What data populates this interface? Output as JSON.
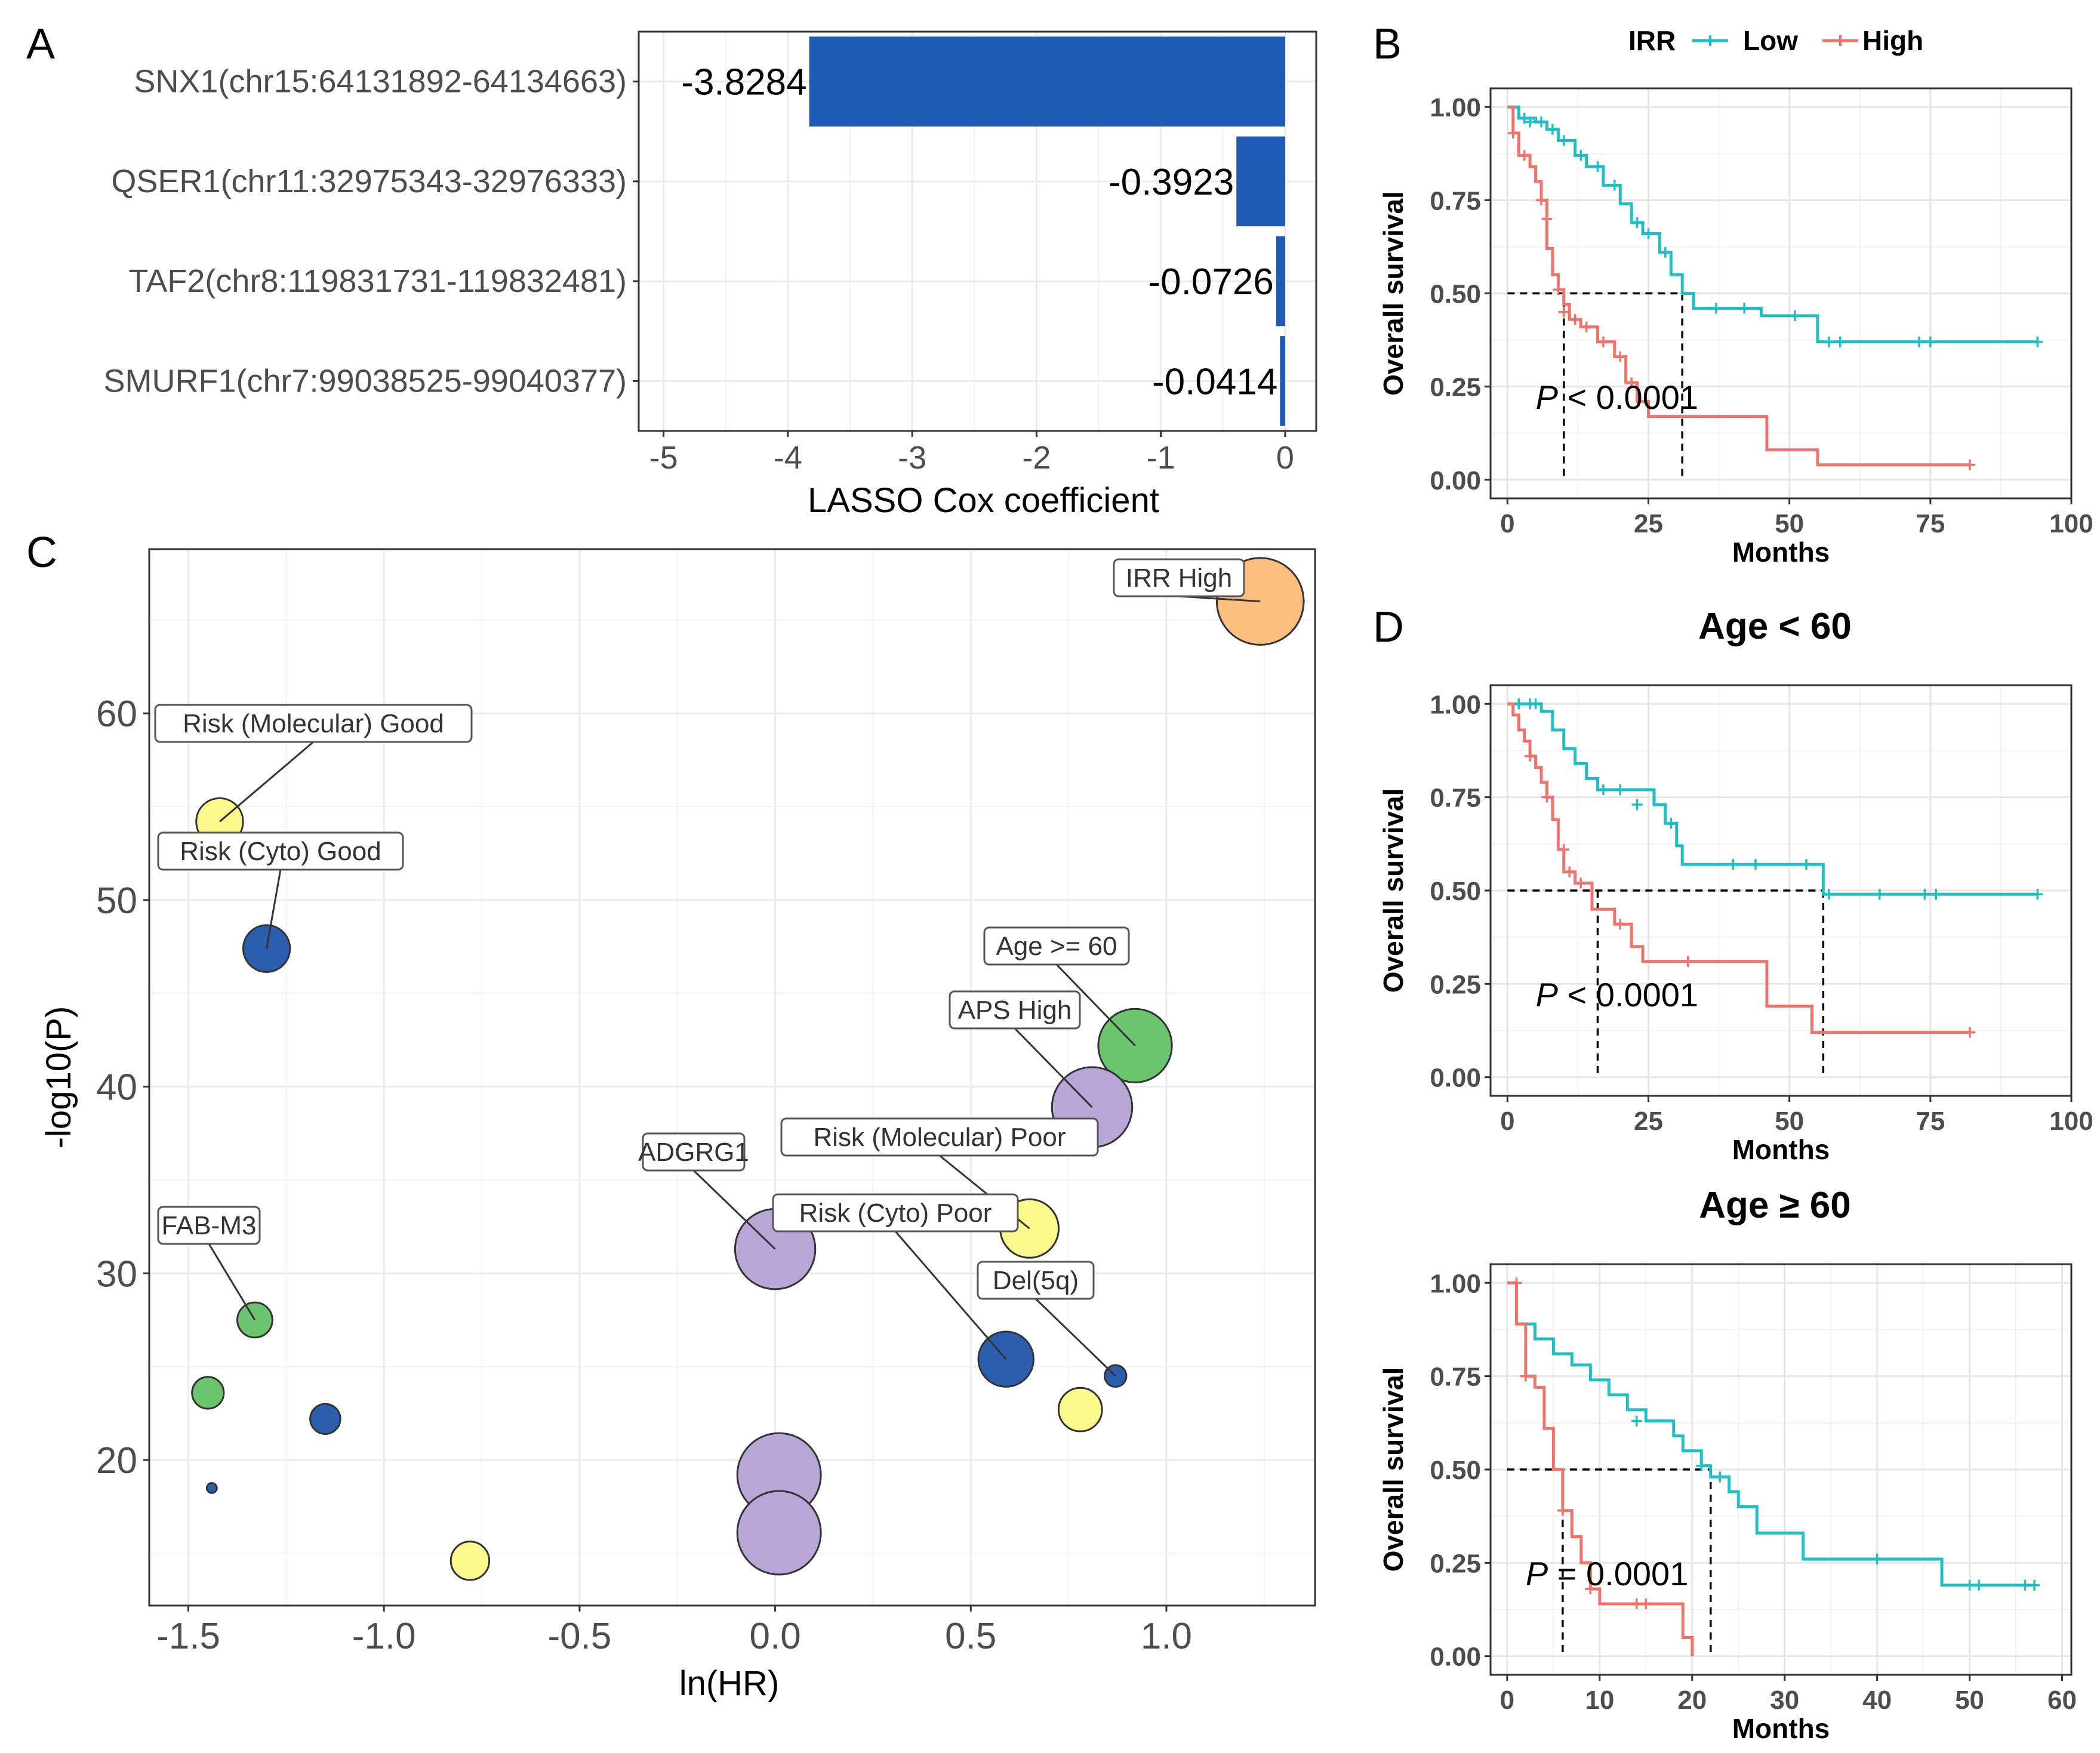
{
  "panel_letters": {
    "a": "A",
    "b": "B",
    "c": "C",
    "d": "D"
  },
  "chart_data": [
    {
      "id": "A",
      "type": "bar",
      "orientation": "horizontal",
      "title": "",
      "xlabel": "LASSO Cox coefficient",
      "ylabel": "",
      "categories": [
        "SNX1(chr15:64131892-64134663)",
        "QSER1(chr11:32975343-32976333)",
        "TAF2(chr8:119831731-119832481)",
        "SMURF1(chr7:99038525-99040377)"
      ],
      "values": [
        -3.8284,
        -0.3923,
        -0.0726,
        -0.0414
      ],
      "value_labels": [
        "-3.8284",
        "-0.3923",
        "-0.0726",
        "-0.0414"
      ],
      "xlim": [
        -5.2,
        0.25
      ],
      "xticks": [
        -5,
        -4,
        -3,
        -2,
        -1,
        0
      ],
      "xtick_labels": [
        "-5",
        "-4",
        "-3",
        "-2",
        "-1",
        "0"
      ],
      "bar_color": "#1f5bb5",
      "grid": true
    },
    {
      "id": "B",
      "type": "line",
      "subtype": "kaplan-meier",
      "title": "",
      "xlabel": "Months",
      "ylabel": "Overall survival",
      "legend": {
        "title": "IRR",
        "position": "top",
        "entries": [
          "Low",
          "High"
        ]
      },
      "xlim": [
        -3,
        100
      ],
      "ylim": [
        -0.05,
        1.05
      ],
      "xticks": [
        0,
        25,
        50,
        75,
        100
      ],
      "xtick_labels": [
        "0",
        "25",
        "50",
        "75",
        "100"
      ],
      "yticks": [
        0,
        0.25,
        0.5,
        0.75,
        1
      ],
      "ytick_labels": [
        "0.00",
        "0.25",
        "0.50",
        "0.75",
        "1.00"
      ],
      "pvalue": {
        "p": "P",
        "text": " < 0.0001",
        "x": 5,
        "y": 0.19
      },
      "median_lines": [
        10,
        31
      ],
      "series": [
        {
          "name": "Low",
          "color": "#1fbfc4",
          "steps": [
            [
              0,
              1
            ],
            [
              2,
              0.97
            ],
            [
              5,
              0.96
            ],
            [
              7,
              0.94
            ],
            [
              9,
              0.91
            ],
            [
              12,
              0.87
            ],
            [
              14,
              0.84
            ],
            [
              17,
              0.79
            ],
            [
              20,
              0.74
            ],
            [
              22,
              0.69
            ],
            [
              24,
              0.66
            ],
            [
              27,
              0.61
            ],
            [
              29,
              0.55
            ],
            [
              31,
              0.5
            ],
            [
              33,
              0.46
            ],
            [
              40,
              0.46
            ],
            [
              45,
              0.44
            ],
            [
              55,
              0.37
            ],
            [
              94,
              0.37
            ]
          ],
          "censors": [
            [
              3,
              0.97
            ],
            [
              4,
              0.96
            ],
            [
              6,
              0.96
            ],
            [
              8,
              0.94
            ],
            [
              10,
              0.91
            ],
            [
              13,
              0.87
            ],
            [
              16,
              0.84
            ],
            [
              19,
              0.79
            ],
            [
              23,
              0.69
            ],
            [
              25,
              0.66
            ],
            [
              28,
              0.61
            ],
            [
              37,
              0.46
            ],
            [
              42,
              0.46
            ],
            [
              51,
              0.44
            ],
            [
              57,
              0.37
            ],
            [
              59,
              0.37
            ],
            [
              73,
              0.37
            ],
            [
              75,
              0.37
            ],
            [
              94,
              0.37
            ]
          ]
        },
        {
          "name": "High",
          "color": "#f0736b",
          "steps": [
            [
              0,
              1
            ],
            [
              1,
              0.93
            ],
            [
              2,
              0.87
            ],
            [
              4,
              0.84
            ],
            [
              5,
              0.8
            ],
            [
              6,
              0.75
            ],
            [
              7,
              0.62
            ],
            [
              8,
              0.55
            ],
            [
              9,
              0.51
            ],
            [
              10,
              0.47
            ],
            [
              11,
              0.43
            ],
            [
              13,
              0.41
            ],
            [
              16,
              0.37
            ],
            [
              19,
              0.33
            ],
            [
              21,
              0.26
            ],
            [
              23,
              0.21
            ],
            [
              25,
              0.17
            ],
            [
              36,
              0.17
            ],
            [
              46,
              0.08
            ],
            [
              55,
              0.04
            ],
            [
              82,
              0.04
            ]
          ],
          "censors": [
            [
              1,
              0.93
            ],
            [
              3,
              0.87
            ],
            [
              6,
              0.75
            ],
            [
              7,
              0.7
            ],
            [
              9,
              0.51
            ],
            [
              10,
              0.45
            ],
            [
              12,
              0.43
            ],
            [
              14,
              0.41
            ],
            [
              17,
              0.37
            ],
            [
              20,
              0.33
            ],
            [
              22,
              0.26
            ],
            [
              82,
              0.04
            ]
          ]
        }
      ]
    },
    {
      "id": "C",
      "type": "scatter",
      "subtype": "bubble",
      "title": "",
      "xlabel": "ln(HR)",
      "ylabel": "-log10(P)",
      "xlim": [
        -1.6,
        1.38
      ],
      "ylim": [
        12.2,
        68.8
      ],
      "xticks": [
        -1.5,
        -1,
        -0.5,
        0,
        0.5,
        1
      ],
      "xtick_labels": [
        "-1.5",
        "-1.0",
        "-0.5",
        "0.0",
        "0.5",
        "1.0"
      ],
      "yticks": [
        20,
        30,
        40,
        50,
        60
      ],
      "ytick_labels": [
        "20",
        "30",
        "40",
        "50",
        "60"
      ],
      "grid": true,
      "points": [
        {
          "label": "IRR High",
          "x": 1.24,
          "y": 66.0,
          "size": 5.2,
          "color": "#fdbf80"
        },
        {
          "label": "Risk (Molecular) Good",
          "x": -1.42,
          "y": 54.2,
          "size": 2.8,
          "color": "#fafa8c"
        },
        {
          "label": "Risk (Cyto) Good",
          "x": -1.3,
          "y": 47.4,
          "size": 2.8,
          "color": "#2b5fad"
        },
        {
          "label": "Age >= 60",
          "x": 0.92,
          "y": 42.2,
          "size": 4.4,
          "color": "#6cc46e"
        },
        {
          "label": "APS High",
          "x": 0.81,
          "y": 38.9,
          "size": 4.8,
          "color": "#b7a6d6"
        },
        {
          "label": "Risk (Molecular) Poor",
          "x": 0.65,
          "y": 32.4,
          "size": 3.5,
          "color": "#fafa8c"
        },
        {
          "label": "ADGRG1",
          "x": 0.0,
          "y": 31.3,
          "size": 4.8,
          "color": "#b7a6d6"
        },
        {
          "label": "Risk (Cyto) Poor",
          "x": 0.59,
          "y": 25.4,
          "size": 3.3,
          "color": "#2b5fad"
        },
        {
          "label": "Del(5q)",
          "x": 0.87,
          "y": 24.5,
          "size": 1.3,
          "color": "#2b5fad"
        },
        {
          "label": "FAB-M3",
          "x": -1.33,
          "y": 27.5,
          "size": 2.1,
          "color": "#6cc46e"
        },
        {
          "label": "",
          "x": -1.45,
          "y": 23.6,
          "size": 1.9,
          "color": "#6cc46e"
        },
        {
          "label": "",
          "x": -1.15,
          "y": 22.2,
          "size": 1.8,
          "color": "#2b5fad"
        },
        {
          "label": "",
          "x": 0.78,
          "y": 22.7,
          "size": 2.6,
          "color": "#fafa8c"
        },
        {
          "label": "",
          "x": -1.44,
          "y": 18.5,
          "size": 0.6,
          "color": "#2b5fad"
        },
        {
          "label": "",
          "x": 0.01,
          "y": 19.2,
          "size": 5.0,
          "color": "#b7a6d6"
        },
        {
          "label": "",
          "x": 0.01,
          "y": 16.1,
          "size": 5.0,
          "color": "#b7a6d6"
        },
        {
          "label": "",
          "x": -0.78,
          "y": 14.6,
          "size": 2.3,
          "color": "#fafa8c"
        }
      ]
    },
    {
      "id": "D1",
      "type": "line",
      "subtype": "kaplan-meier",
      "title": "Age < 60",
      "xlabel": "Months",
      "ylabel": "Overall survival",
      "xlim": [
        -3,
        100
      ],
      "ylim": [
        -0.05,
        1.05
      ],
      "xticks": [
        0,
        25,
        50,
        75,
        100
      ],
      "xtick_labels": [
        "0",
        "25",
        "50",
        "75",
        "100"
      ],
      "yticks": [
        0,
        0.25,
        0.5,
        0.75,
        1
      ],
      "ytick_labels": [
        "0.00",
        "0.25",
        "0.50",
        "0.75",
        "1.00"
      ],
      "pvalue": {
        "p": "P",
        "text": " < 0.0001",
        "x": 5,
        "y": 0.19
      },
      "median_lines": [
        16,
        56
      ],
      "series": [
        {
          "name": "Low",
          "color": "#1fbfc4",
          "steps": [
            [
              0,
              1
            ],
            [
              3,
              1
            ],
            [
              6,
              0.98
            ],
            [
              8,
              0.93
            ],
            [
              10,
              0.88
            ],
            [
              12,
              0.84
            ],
            [
              14,
              0.8
            ],
            [
              16,
              0.77
            ],
            [
              22,
              0.77
            ],
            [
              26,
              0.73
            ],
            [
              28,
              0.68
            ],
            [
              30,
              0.62
            ],
            [
              31,
              0.57
            ],
            [
              56,
              0.49
            ],
            [
              94,
              0.49
            ]
          ],
          "censors": [
            [
              2,
              1
            ],
            [
              4,
              1
            ],
            [
              5,
              1
            ],
            [
              17,
              0.77
            ],
            [
              20,
              0.77
            ],
            [
              23,
              0.73
            ],
            [
              29,
              0.68
            ],
            [
              40,
              0.57
            ],
            [
              44,
              0.57
            ],
            [
              53,
              0.57
            ],
            [
              57,
              0.49
            ],
            [
              66,
              0.49
            ],
            [
              74,
              0.49
            ],
            [
              76,
              0.49
            ],
            [
              94,
              0.49
            ]
          ]
        },
        {
          "name": "High",
          "color": "#f0736b",
          "steps": [
            [
              0,
              1
            ],
            [
              1,
              0.97
            ],
            [
              2,
              0.93
            ],
            [
              3,
              0.9
            ],
            [
              4,
              0.86
            ],
            [
              5,
              0.83
            ],
            [
              6,
              0.79
            ],
            [
              7,
              0.75
            ],
            [
              8,
              0.69
            ],
            [
              9,
              0.61
            ],
            [
              10,
              0.55
            ],
            [
              12,
              0.52
            ],
            [
              15,
              0.45
            ],
            [
              19,
              0.41
            ],
            [
              22,
              0.35
            ],
            [
              24,
              0.31
            ],
            [
              36,
              0.31
            ],
            [
              46,
              0.19
            ],
            [
              54,
              0.12
            ],
            [
              82,
              0.12
            ]
          ],
          "censors": [
            [
              4,
              0.86
            ],
            [
              7,
              0.75
            ],
            [
              10,
              0.61
            ],
            [
              11,
              0.55
            ],
            [
              13,
              0.52
            ],
            [
              20,
              0.41
            ],
            [
              32,
              0.31
            ],
            [
              82,
              0.12
            ]
          ]
        }
      ]
    },
    {
      "id": "D2",
      "type": "line",
      "subtype": "kaplan-meier",
      "title": "Age ≥ 60",
      "xlabel": "Months",
      "ylabel": "Overall survival",
      "xlim": [
        -1.8,
        61
      ],
      "ylim": [
        -0.05,
        1.05
      ],
      "xticks": [
        0,
        10,
        20,
        30,
        40,
        50,
        60
      ],
      "xtick_labels": [
        "0",
        "10",
        "20",
        "30",
        "40",
        "50",
        "60"
      ],
      "yticks": [
        0,
        0.25,
        0.5,
        0.75,
        1
      ],
      "ytick_labels": [
        "0.00",
        "0.25",
        "0.50",
        "0.75",
        "1.00"
      ],
      "pvalue": {
        "p": "P",
        "text": " = 0.0001",
        "x": 2,
        "y": 0.19
      },
      "median_lines": [
        6,
        22
      ],
      "series": [
        {
          "name": "Low",
          "color": "#1fbfc4",
          "steps": [
            [
              0,
              1
            ],
            [
              1,
              0.89
            ],
            [
              3,
              0.85
            ],
            [
              5,
              0.81
            ],
            [
              7,
              0.78
            ],
            [
              9,
              0.74
            ],
            [
              11,
              0.7
            ],
            [
              13,
              0.66
            ],
            [
              15,
              0.63
            ],
            [
              18,
              0.59
            ],
            [
              19,
              0.55
            ],
            [
              21,
              0.51
            ],
            [
              22,
              0.48
            ],
            [
              24,
              0.44
            ],
            [
              25,
              0.4
            ],
            [
              27,
              0.33
            ],
            [
              30,
              0.33
            ],
            [
              32,
              0.26
            ],
            [
              47,
              0.19
            ],
            [
              57,
              0.19
            ]
          ],
          "censors": [
            [
              14,
              0.63
            ],
            [
              21,
              0.51
            ],
            [
              23,
              0.48
            ],
            [
              40,
              0.26
            ],
            [
              50,
              0.19
            ],
            [
              51,
              0.19
            ],
            [
              56,
              0.19
            ],
            [
              57,
              0.19
            ]
          ]
        },
        {
          "name": "High",
          "color": "#f0736b",
          "steps": [
            [
              0,
              1
            ],
            [
              1,
              0.89
            ],
            [
              2,
              0.75
            ],
            [
              3,
              0.72
            ],
            [
              4,
              0.61
            ],
            [
              5,
              0.5
            ],
            [
              6,
              0.39
            ],
            [
              7,
              0.32
            ],
            [
              8,
              0.25
            ],
            [
              9,
              0.18
            ],
            [
              10,
              0.14
            ],
            [
              19,
              0.05
            ],
            [
              20,
              0
            ]
          ],
          "censors": [
            [
              1,
              1
            ],
            [
              2,
              0.75
            ],
            [
              6,
              0.39
            ],
            [
              9,
              0.18
            ],
            [
              14,
              0.14
            ],
            [
              15,
              0.14
            ]
          ]
        }
      ]
    }
  ]
}
